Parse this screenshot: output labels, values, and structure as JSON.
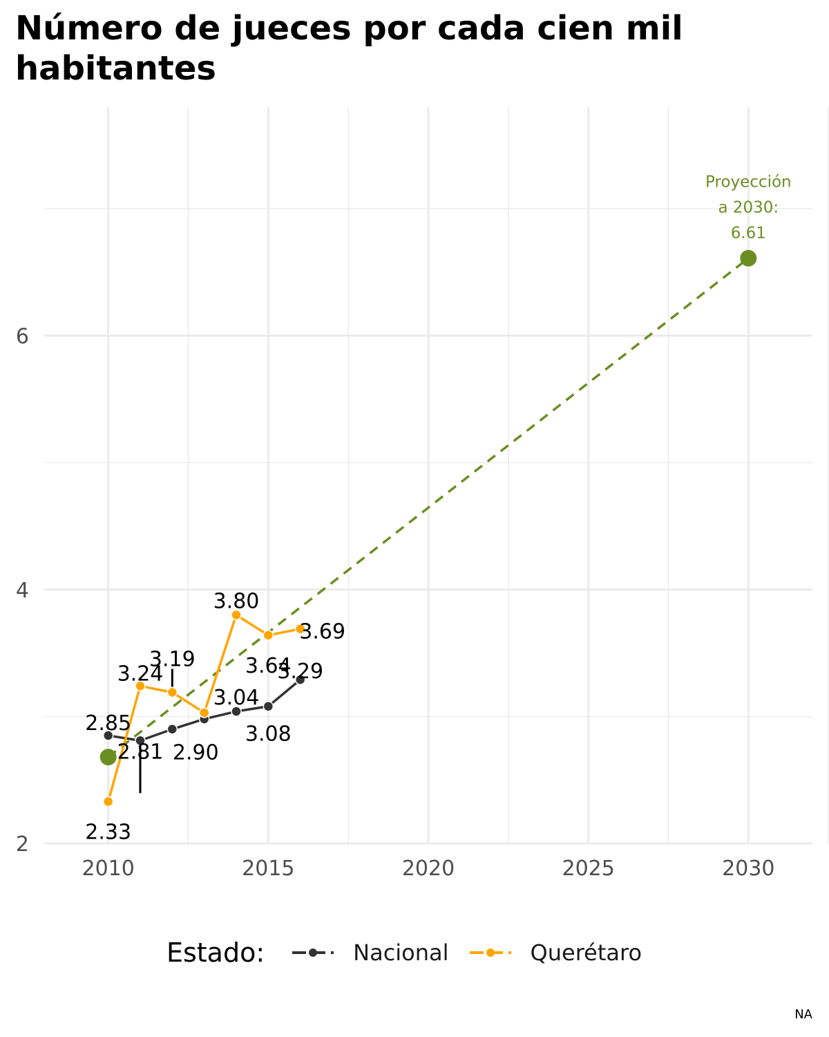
{
  "title": "Número de jueces por cada cien mil habitantes",
  "caption": "NA",
  "legend": {
    "title": "Estado:",
    "items": [
      {
        "label": "Nacional",
        "color": "#333333"
      },
      {
        "label": "Querétaro",
        "color": "#FFA500"
      }
    ]
  },
  "chart_data": {
    "type": "line",
    "title": "Número de jueces por cada cien mil habitantes",
    "xlabel": "",
    "ylabel": "",
    "xlim": [
      2008,
      2032
    ],
    "ylim": [
      2,
      7.8
    ],
    "x_ticks": [
      2010,
      2015,
      2020,
      2025,
      2030
    ],
    "y_ticks": [
      2,
      4,
      6
    ],
    "grid": true,
    "legend_position": "bottom",
    "series": [
      {
        "name": "Nacional",
        "color": "#333333",
        "x": [
          2010,
          2011,
          2012,
          2013,
          2014,
          2015,
          2016
        ],
        "y": [
          2.85,
          2.81,
          2.9,
          2.98,
          3.04,
          3.08,
          3.29
        ],
        "labels": [
          "2.85",
          "2.81",
          "2.90",
          "",
          "3.04",
          "3.08",
          "3.29"
        ]
      },
      {
        "name": "Querétaro",
        "color": "#FFA500",
        "x": [
          2010,
          2011,
          2012,
          2013,
          2014,
          2015,
          2016
        ],
        "y": [
          2.33,
          3.24,
          3.19,
          3.03,
          3.8,
          3.64,
          3.69
        ],
        "labels": [
          "2.33",
          "3.24",
          "3.19",
          "",
          "3.80",
          "3.64",
          "3.69"
        ]
      }
    ],
    "projection": {
      "color": "#6B8E23",
      "x": [
        2010,
        2030
      ],
      "y": [
        2.68,
        6.61
      ],
      "annotation": [
        "Proyección",
        "a 2030:",
        "6.61"
      ]
    }
  }
}
